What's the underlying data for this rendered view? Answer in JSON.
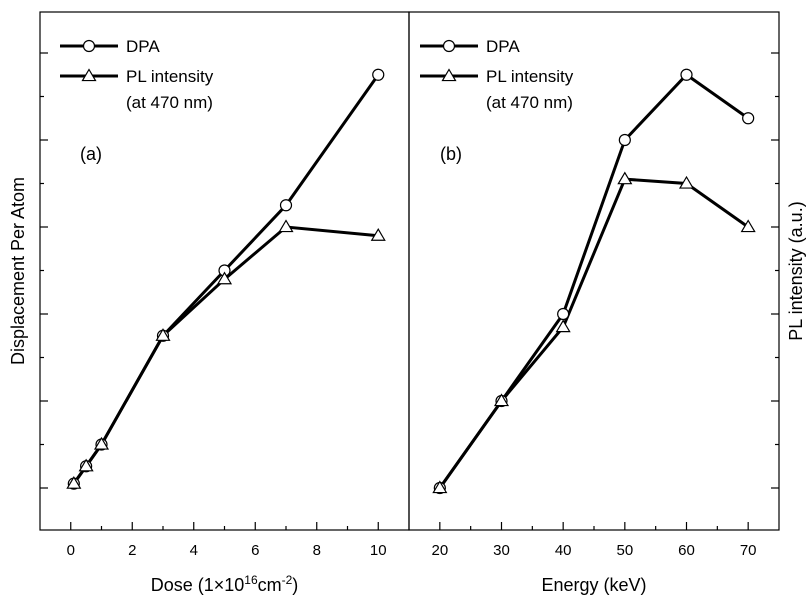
{
  "figure": {
    "left_ylabel": "Displacement Per Atom",
    "right_ylabel": "PL intensity (a.u.)"
  },
  "chart_data": [
    {
      "type": "line",
      "panel_tag": "(a)",
      "xlabel_parts": {
        "prefix": "Dose (1×10",
        "sup1": "16",
        "mid": "cm",
        "sup2": "-2",
        "suffix": ")"
      },
      "xlim": [
        -1,
        11
      ],
      "xticks": [
        0,
        2,
        4,
        6,
        8,
        10
      ],
      "tick_labels": [
        "0",
        "2",
        "4",
        "6",
        "8",
        "10"
      ],
      "legend_position": "top-left",
      "legend_lines": {
        "dpa": "DPA",
        "pl_line1": "PL intensity",
        "pl_line2": "(at 470 nm)"
      },
      "series": [
        {
          "name": "DPA",
          "marker": "circle",
          "x": [
            0.1,
            0.5,
            1,
            3,
            5,
            7,
            10
          ],
          "y": [
            0.01,
            0.05,
            0.1,
            0.35,
            0.5,
            0.65,
            0.95
          ]
        },
        {
          "name": "PL intensity",
          "marker": "triangle",
          "x": [
            0.1,
            0.5,
            1,
            3,
            5,
            7,
            10
          ],
          "y": [
            0.01,
            0.05,
            0.1,
            0.35,
            0.48,
            0.6,
            0.58
          ]
        }
      ]
    },
    {
      "type": "line",
      "panel_tag": "(b)",
      "xlabel": "Energy (keV)",
      "xlim": [
        15,
        75
      ],
      "xticks": [
        20,
        30,
        40,
        50,
        60,
        70
      ],
      "tick_labels": [
        "20",
        "30",
        "40",
        "50",
        "60",
        "70"
      ],
      "legend_position": "top-left",
      "legend_lines": {
        "dpa": "DPA",
        "pl_line1": "PL intensity",
        "pl_line2": "(at 470 nm)"
      },
      "series": [
        {
          "name": "DPA",
          "marker": "circle",
          "x": [
            20,
            30,
            40,
            50,
            60,
            70
          ],
          "y": [
            0.0,
            0.2,
            0.4,
            0.8,
            0.95,
            0.85
          ]
        },
        {
          "name": "PL intensity",
          "marker": "triangle",
          "x": [
            20,
            30,
            40,
            50,
            60,
            70
          ],
          "y": [
            0.0,
            0.2,
            0.37,
            0.71,
            0.7,
            0.6
          ]
        }
      ]
    }
  ]
}
